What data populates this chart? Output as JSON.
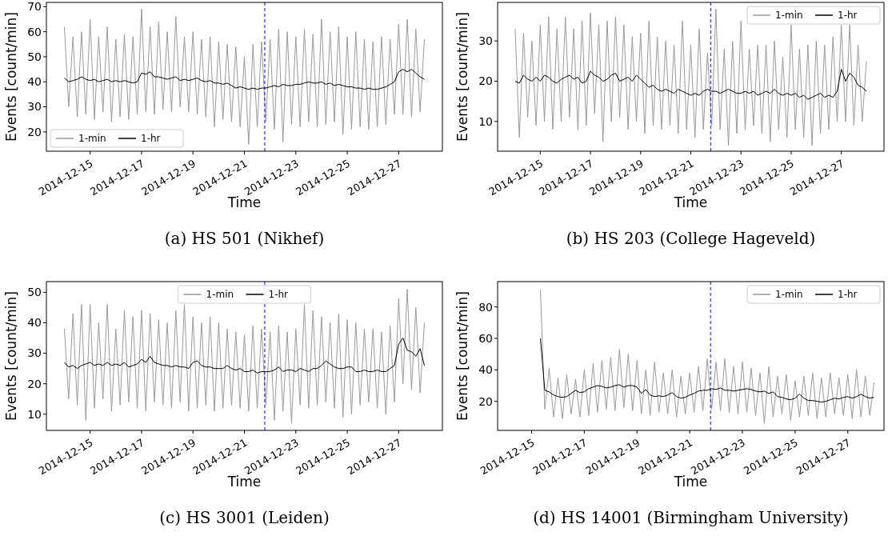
{
  "chart_data": [
    {
      "type": "line",
      "title": "(a) HS 501 (Nikhef)",
      "xlabel": "Time",
      "ylabel": "Events [count/min]",
      "xlim": [
        "2014-12-13T07:12",
        "2014-12-28T16:48"
      ],
      "xticks": [
        "2014-12-15",
        "2014-12-17",
        "2014-12-19",
        "2014-12-21",
        "2014-12-23",
        "2014-12-25",
        "2014-12-27"
      ],
      "ylim": [
        12.3,
        71.7
      ],
      "yticks": [
        20,
        30,
        40,
        50,
        60,
        70
      ],
      "legend": "bottom left",
      "x": [
        "2014-12-14T00:00",
        "2014-12-14T04:00",
        "2014-12-14T08:00",
        "2014-12-14T12:00",
        "2014-12-14T16:00",
        "2014-12-14T20:00",
        "2014-12-15T00:00",
        "2014-12-15T04:00",
        "2014-12-15T08:00",
        "2014-12-15T12:00",
        "2014-12-15T16:00",
        "2014-12-15T20:00",
        "2014-12-16T00:00",
        "2014-12-16T04:00",
        "2014-12-16T08:00",
        "2014-12-16T12:00",
        "2014-12-16T16:00",
        "2014-12-16T20:00",
        "2014-12-17T00:00",
        "2014-12-17T04:00",
        "2014-12-17T08:00",
        "2014-12-17T12:00",
        "2014-12-17T16:00",
        "2014-12-17T20:00",
        "2014-12-18T00:00",
        "2014-12-18T04:00",
        "2014-12-18T08:00",
        "2014-12-18T12:00",
        "2014-12-18T16:00",
        "2014-12-18T20:00",
        "2014-12-19T00:00",
        "2014-12-19T04:00",
        "2014-12-19T08:00",
        "2014-12-19T12:00",
        "2014-12-19T16:00",
        "2014-12-19T20:00",
        "2014-12-20T00:00",
        "2014-12-20T04:00",
        "2014-12-20T08:00",
        "2014-12-20T12:00",
        "2014-12-20T16:00",
        "2014-12-20T20:00",
        "2014-12-21T00:00",
        "2014-12-21T04:00",
        "2014-12-21T08:00",
        "2014-12-21T12:00",
        "2014-12-21T16:00",
        "2014-12-21T20:00",
        "2014-12-22T00:00",
        "2014-12-22T04:00",
        "2014-12-22T08:00",
        "2014-12-22T12:00",
        "2014-12-22T16:00",
        "2014-12-22T20:00",
        "2014-12-23T00:00",
        "2014-12-23T04:00",
        "2014-12-23T08:00",
        "2014-12-23T12:00",
        "2014-12-23T16:00",
        "2014-12-23T20:00",
        "2014-12-24T00:00",
        "2014-12-24T04:00",
        "2014-12-24T08:00",
        "2014-12-24T12:00",
        "2014-12-24T16:00",
        "2014-12-24T20:00",
        "2014-12-25T00:00",
        "2014-12-25T04:00",
        "2014-12-25T08:00",
        "2014-12-25T12:00",
        "2014-12-25T16:00",
        "2014-12-25T20:00",
        "2014-12-26T00:00",
        "2014-12-26T04:00",
        "2014-12-26T08:00",
        "2014-12-26T12:00",
        "2014-12-26T16:00",
        "2014-12-26T20:00",
        "2014-12-27T00:00",
        "2014-12-27T04:00",
        "2014-12-27T08:00",
        "2014-12-27T12:00",
        "2014-12-27T16:00",
        "2014-12-27T20:00",
        "2014-12-28T00:00"
      ],
      "series": [
        {
          "name": "1-min",
          "color": "#999999",
          "values": [
            62,
            30,
            58,
            26,
            60,
            27,
            65,
            25,
            58,
            28,
            62,
            24,
            57,
            26,
            59,
            25,
            58,
            27,
            69,
            28,
            62,
            27,
            64,
            29,
            60,
            28,
            66,
            30,
            58,
            28,
            60,
            27,
            57,
            26,
            58,
            22,
            56,
            25,
            55,
            24,
            54,
            22,
            50,
            15,
            55,
            22,
            56,
            24,
            57,
            21,
            61,
            16,
            60,
            23,
            58,
            22,
            61,
            24,
            59,
            22,
            65,
            23,
            60,
            24,
            62,
            19,
            58,
            21,
            60,
            22,
            57,
            21,
            56,
            22,
            58,
            23,
            57,
            27,
            63,
            27,
            65,
            26,
            61,
            28,
            57
          ]
        },
        {
          "name": "1-hr",
          "color": "#000000",
          "values": [
            41.5,
            40,
            40.5,
            41,
            42,
            41,
            40.5,
            41,
            40,
            40.5,
            41,
            40,
            40.5,
            40,
            40.5,
            40,
            39.5,
            40,
            43.5,
            43,
            44,
            42,
            42,
            41.5,
            41,
            41.5,
            42,
            40.5,
            41,
            40.5,
            41,
            41.5,
            40.5,
            40,
            40.5,
            39.5,
            39.5,
            39,
            39.5,
            38.5,
            37.5,
            38,
            37.5,
            37,
            37.5,
            37,
            37.5,
            37.5,
            38,
            38.5,
            38,
            39,
            38.5,
            38.5,
            39,
            39,
            39.5,
            40,
            39.5,
            39.5,
            40,
            39,
            39.5,
            38.5,
            39,
            38.5,
            38,
            38,
            37.5,
            37.5,
            37,
            37.5,
            37,
            37,
            37.5,
            38,
            39,
            40,
            44,
            45,
            44,
            45,
            43.5,
            42,
            41
          ]
        }
      ],
      "ref_lines": [
        {
          "axis": "x",
          "value": "2014-12-21T19:00",
          "color": "#0000ff",
          "line_style": "dashed"
        }
      ]
    },
    {
      "type": "line",
      "title": "(b) HS 203 (College Hageveld)",
      "xlabel": "Time",
      "ylabel": "Events [count/min]",
      "xlim": [
        "2014-12-13T07:12",
        "2014-12-28T16:48"
      ],
      "xticks": [
        "2014-12-15",
        "2014-12-17",
        "2014-12-19",
        "2014-12-21",
        "2014-12-23",
        "2014-12-25",
        "2014-12-27"
      ],
      "ylim": [
        2.6,
        39.6
      ],
      "yticks": [
        10,
        20,
        30
      ],
      "legend": "top right",
      "x": [
        "2014-12-14T00:00",
        "2014-12-14T04:00",
        "2014-12-14T08:00",
        "2014-12-14T12:00",
        "2014-12-14T16:00",
        "2014-12-14T20:00",
        "2014-12-15T00:00",
        "2014-12-15T04:00",
        "2014-12-15T08:00",
        "2014-12-15T12:00",
        "2014-12-15T16:00",
        "2014-12-15T20:00",
        "2014-12-16T00:00",
        "2014-12-16T04:00",
        "2014-12-16T08:00",
        "2014-12-16T12:00",
        "2014-12-16T16:00",
        "2014-12-16T20:00",
        "2014-12-17T00:00",
        "2014-12-17T04:00",
        "2014-12-17T08:00",
        "2014-12-17T12:00",
        "2014-12-17T16:00",
        "2014-12-17T20:00",
        "2014-12-18T00:00",
        "2014-12-18T04:00",
        "2014-12-18T08:00",
        "2014-12-18T12:00",
        "2014-12-18T16:00",
        "2014-12-18T20:00",
        "2014-12-19T00:00",
        "2014-12-19T04:00",
        "2014-12-19T08:00",
        "2014-12-19T12:00",
        "2014-12-19T16:00",
        "2014-12-19T20:00",
        "2014-12-20T00:00",
        "2014-12-20T04:00",
        "2014-12-20T08:00",
        "2014-12-20T12:00",
        "2014-12-20T16:00",
        "2014-12-20T20:00",
        "2014-12-21T00:00",
        "2014-12-21T04:00",
        "2014-12-21T08:00",
        "2014-12-21T12:00",
        "2014-12-21T16:00",
        "2014-12-21T20:00",
        "2014-12-22T00:00",
        "2014-12-22T04:00",
        "2014-12-22T08:00",
        "2014-12-22T12:00",
        "2014-12-22T16:00",
        "2014-12-22T20:00",
        "2014-12-23T00:00",
        "2014-12-23T04:00",
        "2014-12-23T08:00",
        "2014-12-23T12:00",
        "2014-12-23T16:00",
        "2014-12-23T20:00",
        "2014-12-24T00:00",
        "2014-12-24T04:00",
        "2014-12-24T08:00",
        "2014-12-24T12:00",
        "2014-12-24T16:00",
        "2014-12-24T20:00",
        "2014-12-25T00:00",
        "2014-12-25T04:00",
        "2014-12-25T08:00",
        "2014-12-25T12:00",
        "2014-12-25T16:00",
        "2014-12-25T20:00",
        "2014-12-26T00:00",
        "2014-12-26T04:00",
        "2014-12-26T08:00",
        "2014-12-26T12:00",
        "2014-12-26T16:00",
        "2014-12-26T20:00",
        "2014-12-27T00:00",
        "2014-12-27T04:00",
        "2014-12-27T08:00",
        "2014-12-27T12:00",
        "2014-12-27T16:00",
        "2014-12-27T20:00",
        "2014-12-28T00:00"
      ],
      "series": [
        {
          "name": "1-min",
          "color": "#999999",
          "values": [
            33,
            6,
            32,
            11,
            30,
            9,
            34,
            10,
            36,
            8,
            33,
            10,
            36,
            11,
            33,
            8,
            35,
            9,
            37,
            12,
            34,
            5,
            35,
            10,
            36,
            11,
            34,
            8,
            31,
            10,
            32,
            7,
            35,
            9,
            31,
            8,
            30,
            9,
            29,
            7,
            35,
            8,
            29,
            6,
            33,
            8,
            27,
            9,
            38,
            8,
            28,
            4,
            30,
            7,
            35,
            8,
            28,
            9,
            29,
            7,
            29,
            5,
            30,
            8,
            26,
            6,
            34,
            8,
            28,
            6,
            29,
            4,
            30,
            7,
            29,
            8,
            31,
            10,
            34,
            10,
            34,
            9,
            29,
            10,
            25
          ]
        },
        {
          "name": "1-hr",
          "color": "#000000",
          "values": [
            20,
            19.5,
            21.5,
            20.5,
            20,
            21,
            20,
            21.5,
            21,
            20,
            19.5,
            20.5,
            21,
            21.5,
            20.5,
            21,
            19.5,
            20,
            22.5,
            21.5,
            21,
            20,
            20.5,
            21.5,
            22,
            20,
            20.5,
            21,
            20,
            21.5,
            20.5,
            19.5,
            18.5,
            19,
            18,
            17.5,
            18,
            17.5,
            17,
            18,
            17.5,
            17,
            16.5,
            17,
            16.5,
            17.5,
            18,
            17.5,
            17.5,
            17,
            17.5,
            18,
            17.5,
            17,
            17,
            17.5,
            17,
            17.5,
            16.5,
            17,
            17.5,
            17,
            18,
            17,
            16.5,
            17,
            16.5,
            17,
            16,
            16.5,
            15.5,
            16,
            16.5,
            17,
            16,
            16.5,
            16,
            17.5,
            23,
            20,
            22,
            21,
            19,
            18.5,
            17.5
          ]
        }
      ],
      "ref_lines": [
        {
          "axis": "x",
          "value": "2014-12-21T19:00",
          "color": "#0000ff",
          "line_style": "dashed"
        }
      ]
    },
    {
      "type": "line",
      "title": "(c) HS 3001 (Leiden)",
      "xlabel": "Time",
      "ylabel": "Events [count/min]",
      "xlim": [
        "2014-12-13T07:12",
        "2014-12-28T16:48"
      ],
      "xticks": [
        "2014-12-15",
        "2014-12-17",
        "2014-12-19",
        "2014-12-21",
        "2014-12-23",
        "2014-12-25",
        "2014-12-27"
      ],
      "ylim": [
        4.7,
        53.5
      ],
      "yticks": [
        10,
        20,
        30,
        40,
        50
      ],
      "legend": "top",
      "x": [
        "2014-12-14T00:00",
        "2014-12-14T04:00",
        "2014-12-14T08:00",
        "2014-12-14T12:00",
        "2014-12-14T16:00",
        "2014-12-14T20:00",
        "2014-12-15T00:00",
        "2014-12-15T04:00",
        "2014-12-15T08:00",
        "2014-12-15T12:00",
        "2014-12-15T16:00",
        "2014-12-15T20:00",
        "2014-12-16T00:00",
        "2014-12-16T04:00",
        "2014-12-16T08:00",
        "2014-12-16T12:00",
        "2014-12-16T16:00",
        "2014-12-16T20:00",
        "2014-12-17T00:00",
        "2014-12-17T04:00",
        "2014-12-17T08:00",
        "2014-12-17T12:00",
        "2014-12-17T16:00",
        "2014-12-17T20:00",
        "2014-12-18T00:00",
        "2014-12-18T04:00",
        "2014-12-18T08:00",
        "2014-12-18T12:00",
        "2014-12-18T16:00",
        "2014-12-18T20:00",
        "2014-12-19T00:00",
        "2014-12-19T04:00",
        "2014-12-19T08:00",
        "2014-12-19T12:00",
        "2014-12-19T16:00",
        "2014-12-19T20:00",
        "2014-12-20T00:00",
        "2014-12-20T04:00",
        "2014-12-20T08:00",
        "2014-12-20T12:00",
        "2014-12-20T16:00",
        "2014-12-20T20:00",
        "2014-12-21T00:00",
        "2014-12-21T04:00",
        "2014-12-21T08:00",
        "2014-12-21T12:00",
        "2014-12-21T16:00",
        "2014-12-21T20:00",
        "2014-12-22T00:00",
        "2014-12-22T04:00",
        "2014-12-22T08:00",
        "2014-12-22T12:00",
        "2014-12-22T16:00",
        "2014-12-22T20:00",
        "2014-12-23T00:00",
        "2014-12-23T04:00",
        "2014-12-23T08:00",
        "2014-12-23T12:00",
        "2014-12-23T16:00",
        "2014-12-23T20:00",
        "2014-12-24T00:00",
        "2014-12-24T04:00",
        "2014-12-24T08:00",
        "2014-12-24T12:00",
        "2014-12-24T16:00",
        "2014-12-24T20:00",
        "2014-12-25T00:00",
        "2014-12-25T04:00",
        "2014-12-25T08:00",
        "2014-12-25T12:00",
        "2014-12-25T16:00",
        "2014-12-25T20:00",
        "2014-12-26T00:00",
        "2014-12-26T04:00",
        "2014-12-26T08:00",
        "2014-12-26T12:00",
        "2014-12-26T16:00",
        "2014-12-26T20:00",
        "2014-12-27T00:00",
        "2014-12-27T04:00",
        "2014-12-27T08:00",
        "2014-12-27T12:00",
        "2014-12-27T16:00",
        "2014-12-27T20:00",
        "2014-12-28T00:00"
      ],
      "series": [
        {
          "name": "1-min",
          "color": "#999999",
          "values": [
            38,
            15,
            43,
            13,
            46,
            8,
            46,
            12,
            40,
            15,
            46,
            11,
            38,
            13,
            44,
            14,
            42,
            12,
            44,
            11,
            43,
            14,
            41,
            13,
            40,
            12,
            44,
            14,
            46,
            11,
            42,
            12,
            40,
            13,
            42,
            11,
            40,
            12,
            38,
            13,
            37,
            12,
            36,
            11,
            39,
            12,
            38,
            13,
            37,
            8,
            39,
            11,
            37,
            7,
            38,
            13,
            46,
            12,
            44,
            13,
            42,
            14,
            40,
            12,
            43,
            9,
            41,
            10,
            40,
            13,
            38,
            14,
            38,
            12,
            37,
            10,
            39,
            14,
            48,
            20,
            51,
            18,
            45,
            17,
            40
          ]
        },
        {
          "name": "1-hr",
          "color": "#000000",
          "values": [
            27,
            25.5,
            26,
            25,
            26,
            26.5,
            27,
            26,
            26.5,
            26,
            27,
            26,
            26.5,
            26,
            27,
            25.5,
            26,
            26.5,
            28,
            27,
            29,
            27,
            26.5,
            26,
            26,
            25.5,
            26,
            25.5,
            25.5,
            25,
            27,
            27.5,
            26,
            25.5,
            25.5,
            25,
            25,
            25,
            26,
            25,
            24.5,
            25,
            24,
            24,
            24.5,
            23.5,
            24,
            24,
            24,
            24.5,
            25.5,
            24,
            24.5,
            24.5,
            24,
            25,
            24.5,
            24,
            25,
            25,
            26,
            27.5,
            26.5,
            25.5,
            25,
            25,
            25.5,
            25.5,
            24,
            24,
            24.5,
            24,
            24,
            24.5,
            24,
            24,
            25,
            26,
            33,
            35,
            31,
            30.5,
            29,
            31.5,
            26
          ]
        }
      ],
      "ref_lines": [
        {
          "axis": "x",
          "value": "2014-12-21T19:00",
          "color": "#0000ff",
          "line_style": "dashed"
        }
      ]
    },
    {
      "type": "line",
      "title": "(d) HS 14001 (Birmingham University)",
      "xlabel": "Time",
      "ylabel": "Events [count/min]",
      "xlim": [
        "2014-12-13T17:00",
        "2014-12-28T09:00"
      ],
      "xticks": [
        "2014-12-15",
        "2014-12-17",
        "2014-12-19",
        "2014-12-21",
        "2014-12-23",
        "2014-12-25",
        "2014-12-27"
      ],
      "ylim": [
        1.5,
        96.1
      ],
      "yticks": [
        20,
        40,
        60,
        80
      ],
      "legend": "top right",
      "x": [
        "2014-12-15T08:00",
        "2014-12-15T12:00",
        "2014-12-15T16:00",
        "2014-12-15T20:00",
        "2014-12-16T00:00",
        "2014-12-16T04:00",
        "2014-12-16T08:00",
        "2014-12-16T12:00",
        "2014-12-16T16:00",
        "2014-12-16T20:00",
        "2014-12-17T00:00",
        "2014-12-17T04:00",
        "2014-12-17T08:00",
        "2014-12-17T12:00",
        "2014-12-17T16:00",
        "2014-12-17T20:00",
        "2014-12-18T00:00",
        "2014-12-18T04:00",
        "2014-12-18T08:00",
        "2014-12-18T12:00",
        "2014-12-18T16:00",
        "2014-12-18T20:00",
        "2014-12-19T00:00",
        "2014-12-19T04:00",
        "2014-12-19T08:00",
        "2014-12-19T12:00",
        "2014-12-19T16:00",
        "2014-12-19T20:00",
        "2014-12-20T00:00",
        "2014-12-20T04:00",
        "2014-12-20T08:00",
        "2014-12-20T12:00",
        "2014-12-20T16:00",
        "2014-12-20T20:00",
        "2014-12-21T00:00",
        "2014-12-21T04:00",
        "2014-12-21T08:00",
        "2014-12-21T12:00",
        "2014-12-21T16:00",
        "2014-12-21T20:00",
        "2014-12-22T00:00",
        "2014-12-22T04:00",
        "2014-12-22T08:00",
        "2014-12-22T12:00",
        "2014-12-22T16:00",
        "2014-12-22T20:00",
        "2014-12-23T00:00",
        "2014-12-23T04:00",
        "2014-12-23T08:00",
        "2014-12-23T12:00",
        "2014-12-23T16:00",
        "2014-12-23T20:00",
        "2014-12-24T00:00",
        "2014-12-24T04:00",
        "2014-12-24T08:00",
        "2014-12-24T12:00",
        "2014-12-24T16:00",
        "2014-12-24T20:00",
        "2014-12-25T00:00",
        "2014-12-25T04:00",
        "2014-12-25T08:00",
        "2014-12-25T12:00",
        "2014-12-25T16:00",
        "2014-12-25T20:00",
        "2014-12-26T00:00",
        "2014-12-26T04:00",
        "2014-12-26T08:00",
        "2014-12-26T12:00",
        "2014-12-26T16:00",
        "2014-12-26T20:00",
        "2014-12-27T00:00",
        "2014-12-27T04:00",
        "2014-12-27T08:00",
        "2014-12-27T12:00",
        "2014-12-27T16:00",
        "2014-12-27T20:00",
        "2014-12-28T00:00"
      ],
      "series": [
        {
          "name": "1-min",
          "color": "#999999",
          "values": [
            91,
            15,
            41,
            10,
            35,
            9,
            37,
            12,
            34,
            10,
            40,
            11,
            44,
            13,
            46,
            15,
            48,
            14,
            53,
            16,
            50,
            14,
            46,
            12,
            40,
            11,
            45,
            13,
            38,
            12,
            40,
            10,
            36,
            12,
            38,
            13,
            42,
            14,
            47,
            15,
            45,
            14,
            47,
            13,
            42,
            12,
            45,
            13,
            41,
            11,
            38,
            6,
            42,
            10,
            36,
            12,
            37,
            8,
            33,
            10,
            36,
            11,
            38,
            9,
            35,
            10,
            38,
            12,
            35,
            11,
            37,
            9,
            40,
            10,
            36,
            11,
            32
          ]
        },
        {
          "name": "1-hr",
          "color": "#000000",
          "values": [
            60,
            27,
            26,
            24,
            23,
            22.5,
            23,
            25,
            27,
            25.5,
            26,
            28,
            29,
            30,
            29.5,
            28.5,
            29,
            30,
            30.5,
            29,
            30,
            30,
            29,
            25,
            27.5,
            24,
            23,
            23.5,
            23,
            24,
            25.5,
            23,
            22,
            22.5,
            24,
            25,
            26.5,
            27,
            27,
            28,
            27.5,
            28.5,
            27,
            27,
            26.5,
            27,
            27.5,
            28,
            27.5,
            26.5,
            26,
            26.5,
            25,
            26,
            23,
            22.5,
            21.5,
            21,
            22,
            24.5,
            22,
            20.5,
            20.5,
            20,
            19.5,
            20,
            21,
            22,
            21.5,
            22.5,
            23,
            22,
            23,
            24.5,
            23,
            22,
            22.5
          ]
        }
      ],
      "ref_lines": [
        {
          "axis": "x",
          "value": "2014-12-21T19:00",
          "color": "#0000ff",
          "line_style": "dashed"
        }
      ]
    }
  ]
}
